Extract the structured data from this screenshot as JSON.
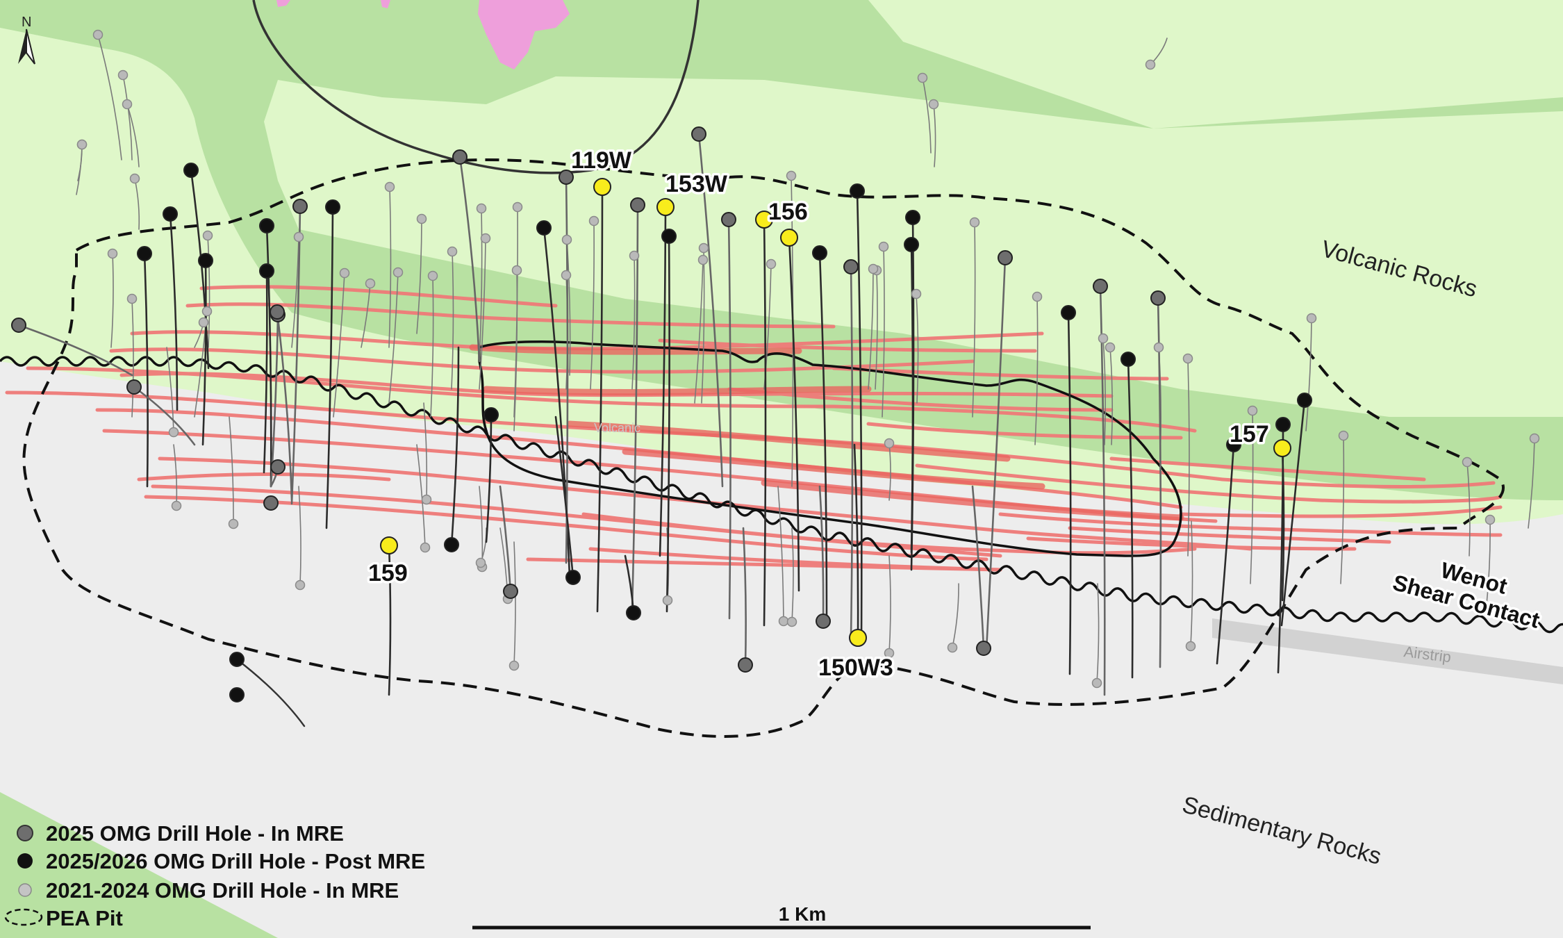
{
  "north_arrow": {
    "label": "N"
  },
  "region_labels": {
    "volcanic": "Volcanic Rocks",
    "sedimentary": "Sedimentary Rocks",
    "contact_line1": "Wenot",
    "contact_line2": "Shear Contact",
    "airstrip": "Airstrip",
    "faint_label": "Volcanic"
  },
  "highlight_holes": {
    "h119W": "119W",
    "h153W": "153W",
    "h156": "156",
    "h157": "157",
    "h159": "159",
    "h150W3": "150W3"
  },
  "legend": {
    "items": [
      {
        "label": "2025 OMG Drill Hole - In MRE",
        "symbol": "dark-grey-circle"
      },
      {
        "label": "2025/2026 OMG Drill Hole - Post MRE",
        "symbol": "black-circle"
      },
      {
        "label": "2021-2024 OMG Drill Hole - In MRE",
        "symbol": "light-grey-circle"
      },
      {
        "label": "PEA Pit",
        "symbol": "dashed-ellipse"
      }
    ]
  },
  "scale_bar": {
    "label": "1 Km"
  },
  "colors": {
    "sedimentary": "#ededed",
    "volcanic_light": "#dff7c9",
    "volcanic_dark": "#b8e1a2",
    "intrusive": "#ee9fdb",
    "vein": "#ef7a78",
    "highlight_hole": "#f8ec1c",
    "post_mre_hole": "#111111",
    "in_mre_2025_hole": "#6e6e6e",
    "in_mre_2021_2024_hole": "#b9b9b9"
  }
}
